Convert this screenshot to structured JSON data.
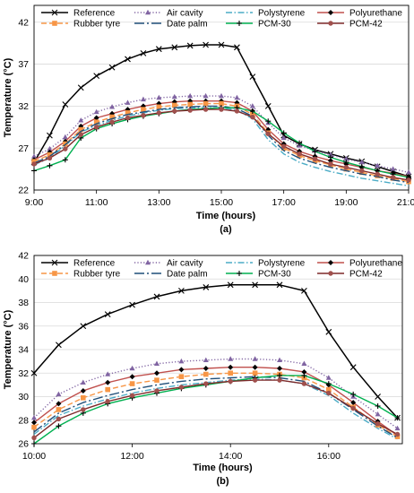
{
  "chart_data": [
    {
      "type": "line",
      "panel": "(a)",
      "xlabel": "Time (hours)",
      "ylabel": "Temperature (°C)",
      "xlim": [
        9,
        21
      ],
      "ylim": [
        22,
        44
      ],
      "xticks": [
        9,
        11,
        13,
        15,
        17,
        19,
        21
      ],
      "xticklabels": [
        "9:00",
        "11:00",
        "13:00",
        "15:00",
        "17:00",
        "19:00",
        "21:00"
      ],
      "yticks": [
        22,
        27,
        32,
        37,
        42
      ],
      "grid": "horizontal",
      "legend": "top, inside, 4 columns",
      "series": [
        {
          "name": "Reference",
          "color": "#000000",
          "marker": "x",
          "dash": "solid",
          "x": [
            9,
            9.5,
            10,
            10.5,
            11,
            11.5,
            12,
            12.5,
            13,
            13.5,
            14,
            14.5,
            15,
            15.5,
            16,
            16.5,
            17,
            17.5,
            18,
            18.5,
            19,
            19.5,
            20,
            20.5,
            21
          ],
          "y": [
            25.3,
            28.5,
            32.2,
            34.2,
            35.6,
            36.6,
            37.6,
            38.3,
            38.8,
            39.0,
            39.2,
            39.3,
            39.3,
            39.0,
            35.5,
            32.0,
            28.5,
            27.5,
            26.8,
            26.3,
            25.8,
            25.4,
            24.8,
            24.2,
            23.6
          ]
        },
        {
          "name": "Air cavity",
          "color": "#8064A2",
          "marker": "triangle",
          "dash": "dot",
          "x": [
            9,
            9.5,
            10,
            10.5,
            11,
            11.5,
            12,
            12.5,
            13,
            13.5,
            14,
            14.5,
            15,
            15.5,
            16,
            16.5,
            17,
            17.5,
            18,
            18.5,
            19,
            19.5,
            20,
            20.5,
            21
          ],
          "y": [
            26.0,
            26.9,
            28.3,
            30.3,
            31.3,
            31.9,
            32.4,
            32.8,
            33.0,
            33.1,
            33.2,
            33.2,
            33.2,
            33.0,
            32.0,
            30.0,
            28.2,
            27.3,
            26.7,
            26.2,
            25.7,
            25.3,
            24.9,
            24.5,
            24.1
          ]
        },
        {
          "name": "Polystyrene",
          "color": "#4BACC6",
          "marker": "none",
          "dash": "dashdot",
          "x": [
            9,
            9.5,
            10,
            10.5,
            11,
            11.5,
            12,
            12.5,
            13,
            13.5,
            14,
            14.5,
            15,
            15.5,
            16,
            16.5,
            17,
            17.5,
            18,
            18.5,
            19,
            19.5,
            20,
            20.5,
            21
          ],
          "y": [
            25.0,
            25.8,
            27.3,
            28.9,
            29.7,
            30.3,
            30.8,
            31.2,
            31.5,
            31.7,
            31.8,
            31.8,
            31.8,
            31.5,
            30.5,
            28.0,
            26.3,
            25.3,
            24.7,
            24.2,
            23.8,
            23.4,
            23.1,
            22.8,
            22.5
          ]
        },
        {
          "name": "Polyurethane",
          "color": "#C0504D",
          "marker": "diamond",
          "dash": "solid",
          "marker_color": "#000000",
          "x": [
            9,
            9.5,
            10,
            10.5,
            11,
            11.5,
            12,
            12.5,
            13,
            13.5,
            14,
            14.5,
            15,
            15.5,
            16,
            16.5,
            17,
            17.5,
            18,
            18.5,
            19,
            19.5,
            20,
            20.5,
            21
          ],
          "y": [
            25.6,
            26.5,
            27.8,
            29.6,
            30.6,
            31.1,
            31.6,
            32.0,
            32.3,
            32.5,
            32.6,
            32.6,
            32.6,
            32.4,
            31.4,
            29.2,
            27.5,
            26.6,
            26.0,
            25.5,
            25.1,
            24.7,
            24.3,
            24.0,
            23.6
          ]
        },
        {
          "name": "Rubber tyre",
          "color": "#F79646",
          "marker": "square",
          "dash": "dash",
          "x": [
            9,
            9.5,
            10,
            10.5,
            11,
            11.5,
            12,
            12.5,
            13,
            13.5,
            14,
            14.5,
            15,
            15.5,
            16,
            16.5,
            17,
            17.5,
            18,
            18.5,
            19,
            19.5,
            20,
            20.5,
            21
          ],
          "y": [
            25.4,
            26.2,
            27.5,
            29.2,
            30.1,
            30.7,
            31.2,
            31.6,
            31.9,
            32.1,
            32.2,
            32.3,
            32.3,
            32.0,
            31.0,
            28.8,
            27.0,
            26.1,
            25.5,
            25.0,
            24.5,
            24.1,
            23.7,
            23.4,
            23.0
          ]
        },
        {
          "name": "Date palm",
          "color": "#1F4E79",
          "marker": "none",
          "dash": "longdashdot",
          "x": [
            9,
            9.5,
            10,
            10.5,
            11,
            11.5,
            12,
            12.5,
            13,
            13.5,
            14,
            14.5,
            15,
            15.5,
            16,
            16.5,
            17,
            17.5,
            18,
            18.5,
            19,
            19.5,
            20,
            20.5,
            21
          ],
          "y": [
            25.2,
            26.0,
            27.4,
            29.0,
            29.9,
            30.5,
            31.0,
            31.3,
            31.6,
            31.8,
            31.9,
            32.0,
            32.0,
            31.7,
            30.8,
            28.5,
            26.7,
            25.8,
            25.2,
            24.7,
            24.3,
            23.9,
            23.6,
            23.2,
            22.9
          ]
        },
        {
          "name": "PCM-30",
          "color": "#00B050",
          "marker": "plus",
          "dash": "solid",
          "marker_color": "#000000",
          "x": [
            9,
            9.5,
            10,
            10.5,
            11,
            11.5,
            12,
            12.5,
            13,
            13.5,
            14,
            14.5,
            15,
            15.5,
            16,
            16.5,
            17,
            17.5,
            18,
            18.5,
            19,
            19.5,
            20,
            20.5,
            21
          ],
          "y": [
            24.3,
            24.9,
            25.6,
            28.2,
            29.3,
            29.9,
            30.4,
            30.8,
            31.1,
            31.4,
            31.6,
            31.7,
            31.8,
            31.8,
            31.4,
            30.2,
            28.8,
            27.6,
            26.6,
            25.9,
            25.3,
            24.8,
            24.3,
            23.9,
            23.5
          ]
        },
        {
          "name": "PCM-42",
          "color": "#7F2A2A",
          "marker": "circle",
          "dash": "solid",
          "marker_color": "#A0504D",
          "x": [
            9,
            9.5,
            10,
            10.5,
            11,
            11.5,
            12,
            12.5,
            13,
            13.5,
            14,
            14.5,
            15,
            15.5,
            16,
            16.5,
            17,
            17.5,
            18,
            18.5,
            19,
            19.5,
            20,
            20.5,
            21
          ],
          "y": [
            25.1,
            25.8,
            26.9,
            28.6,
            29.5,
            30.1,
            30.6,
            30.9,
            31.2,
            31.4,
            31.5,
            31.6,
            31.6,
            31.4,
            30.7,
            28.7,
            27.2,
            26.3,
            25.7,
            25.1,
            24.7,
            24.3,
            23.9,
            23.5,
            23.2
          ]
        }
      ]
    },
    {
      "type": "line",
      "panel": "(b)",
      "xlabel": "Time (hours)",
      "ylabel": "Temperature (°C)",
      "xlim": [
        10,
        17.5
      ],
      "ylim": [
        26,
        42
      ],
      "xticks": [
        10,
        12,
        14,
        16
      ],
      "xticklabels": [
        "10:00",
        "12:00",
        "14:00",
        "16:00"
      ],
      "yticks": [
        26,
        28,
        30,
        32,
        34,
        36,
        38,
        40,
        42
      ],
      "grid": "horizontal",
      "legend": "top, inside, 4 columns",
      "series": [
        {
          "name": "Reference",
          "color": "#000000",
          "marker": "x",
          "dash": "solid",
          "x": [
            10,
            10.5,
            11,
            11.5,
            12,
            12.5,
            13,
            13.5,
            14,
            14.5,
            15,
            15.5,
            16,
            16.5,
            17,
            17.4
          ],
          "y": [
            32.0,
            34.4,
            36.0,
            37.0,
            37.8,
            38.5,
            39.0,
            39.3,
            39.5,
            39.5,
            39.5,
            39.0,
            35.5,
            32.5,
            30.0,
            28.2
          ]
        },
        {
          "name": "Air cavity",
          "color": "#8064A2",
          "marker": "triangle",
          "dash": "dot",
          "x": [
            10,
            10.5,
            11,
            11.5,
            12,
            12.5,
            13,
            13.5,
            14,
            14.5,
            15,
            15.5,
            16,
            16.5,
            17,
            17.4
          ],
          "y": [
            28.2,
            30.2,
            31.2,
            31.9,
            32.4,
            32.8,
            33.0,
            33.1,
            33.2,
            33.2,
            33.1,
            32.8,
            31.6,
            30.0,
            28.5,
            27.3
          ]
        },
        {
          "name": "Polystyrene",
          "color": "#4BACC6",
          "marker": "none",
          "dash": "dashdot",
          "x": [
            10,
            10.5,
            11,
            11.5,
            12,
            12.5,
            13,
            13.5,
            14,
            14.5,
            15,
            15.5,
            16,
            16.5,
            17,
            17.4
          ],
          "y": [
            26.8,
            28.4,
            29.2,
            29.8,
            30.3,
            30.7,
            31.0,
            31.2,
            31.4,
            31.5,
            31.4,
            31.1,
            30.1,
            28.6,
            27.3,
            26.4
          ]
        },
        {
          "name": "Polyurethane",
          "color": "#C0504D",
          "marker": "diamond",
          "dash": "solid",
          "marker_color": "#000000",
          "x": [
            10,
            10.5,
            11,
            11.5,
            12,
            12.5,
            13,
            13.5,
            14,
            14.5,
            15,
            15.5,
            16,
            16.5,
            17,
            17.4
          ],
          "y": [
            27.8,
            29.4,
            30.5,
            31.2,
            31.7,
            32.0,
            32.3,
            32.4,
            32.5,
            32.5,
            32.4,
            32.1,
            31.0,
            29.5,
            27.9,
            26.7
          ]
        },
        {
          "name": "Rubber tyre",
          "color": "#F79646",
          "marker": "square",
          "dash": "dash",
          "x": [
            10,
            10.5,
            11,
            11.5,
            12,
            12.5,
            13,
            13.5,
            14,
            14.5,
            15,
            15.5,
            16,
            16.5,
            17,
            17.4
          ],
          "y": [
            27.4,
            28.9,
            29.9,
            30.6,
            31.1,
            31.4,
            31.7,
            31.9,
            32.0,
            32.0,
            31.9,
            31.6,
            30.6,
            29.1,
            27.6,
            26.6
          ]
        },
        {
          "name": "Date palm",
          "color": "#1F4E79",
          "marker": "none",
          "dash": "longdashdot",
          "x": [
            10,
            10.5,
            11,
            11.5,
            12,
            12.5,
            13,
            13.5,
            14,
            14.5,
            15,
            15.5,
            16,
            16.5,
            17,
            17.4
          ],
          "y": [
            27.0,
            28.6,
            29.5,
            30.1,
            30.6,
            31.0,
            31.3,
            31.5,
            31.6,
            31.7,
            31.6,
            31.3,
            30.3,
            28.9,
            27.5,
            26.5
          ]
        },
        {
          "name": "PCM-30",
          "color": "#00B050",
          "marker": "plus",
          "dash": "solid",
          "marker_color": "#000000",
          "x": [
            10,
            10.5,
            11,
            11.5,
            12,
            12.5,
            13,
            13.5,
            14,
            14.5,
            15,
            15.5,
            16,
            16.5,
            17,
            17.4
          ],
          "y": [
            26.0,
            27.5,
            28.6,
            29.4,
            29.9,
            30.3,
            30.7,
            31.0,
            31.3,
            31.6,
            31.8,
            31.8,
            31.1,
            30.2,
            29.2,
            28.2
          ]
        },
        {
          "name": "PCM-42",
          "color": "#7F2A2A",
          "marker": "circle",
          "dash": "solid",
          "marker_color": "#A0504D",
          "x": [
            10,
            10.5,
            11,
            11.5,
            12,
            12.5,
            13,
            13.5,
            14,
            14.5,
            15,
            15.5,
            16,
            16.5,
            17,
            17.4
          ],
          "y": [
            26.5,
            28.1,
            28.9,
            29.6,
            30.1,
            30.5,
            30.8,
            31.1,
            31.3,
            31.4,
            31.4,
            31.1,
            30.3,
            29.0,
            27.7,
            26.8
          ]
        }
      ]
    }
  ]
}
